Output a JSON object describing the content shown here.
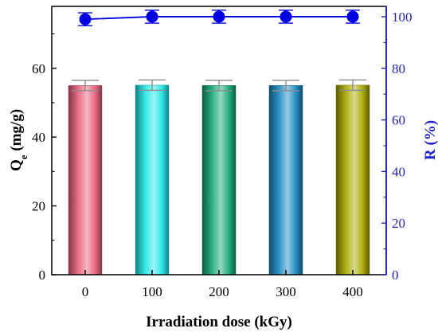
{
  "chart_data": {
    "type": "bar",
    "categories": [
      "0",
      "100",
      "200",
      "300",
      "400"
    ],
    "xlabel": "Irradiation dose (kGy)",
    "ylabel_left": {
      "main": "Q",
      "sub": "e",
      "rest": " (mg/g)"
    },
    "ylabel_right": "R (%)",
    "ylim_left": [
      0,
      78
    ],
    "yticks_left": [
      0,
      20,
      40,
      60
    ],
    "ylim_right": [
      0,
      104
    ],
    "yticks_right": [
      0,
      20,
      40,
      60,
      80,
      100
    ],
    "grid": false,
    "legend": "none",
    "series": [
      {
        "type": "bar",
        "axis": "left",
        "values": [
          55,
          55.1,
          55,
          55,
          55.1
        ],
        "errors": [
          1.5,
          1.5,
          1.5,
          1.5,
          1.5
        ],
        "colors": [
          "#e8607c",
          "#22e6e6",
          "#16a878",
          "#1a88c0",
          "#a8a800"
        ]
      },
      {
        "type": "line",
        "axis": "right",
        "values": [
          99,
          100,
          100,
          100,
          100
        ],
        "errors": [
          2.5,
          2.5,
          2.5,
          2.5,
          2.5
        ],
        "color": "#0000e0"
      }
    ],
    "colors": {
      "right_axis": "#1f1fcc",
      "error_bar": "#8c8c8c"
    }
  }
}
